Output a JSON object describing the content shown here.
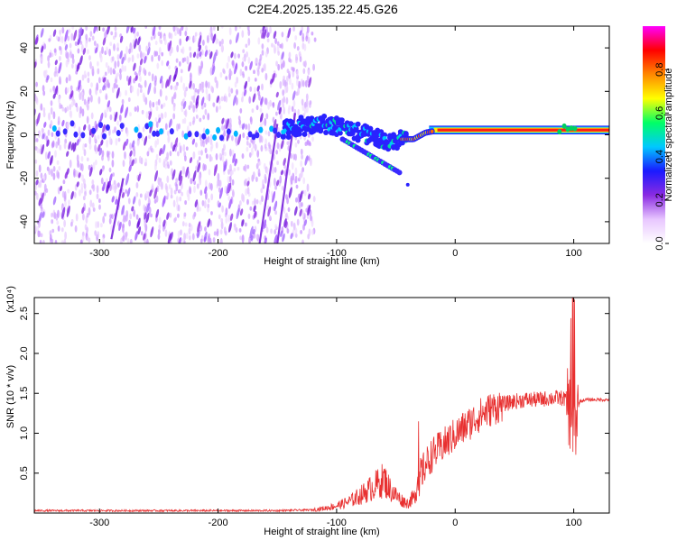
{
  "title": "C2E4.2025.135.22.45.G26",
  "chart_data": [
    {
      "type": "heatmap",
      "xlabel": "Height of straight line (km)",
      "ylabel": "Frequency (Hz)",
      "xlim": [
        -355,
        130
      ],
      "ylim": [
        -50,
        50
      ],
      "xticks": [
        -300,
        -200,
        -100,
        0,
        100
      ],
      "yticks": [
        -40,
        -20,
        0,
        20,
        40
      ],
      "colorbar": {
        "label": "Normalized spectral amplitude",
        "range": [
          0,
          1
        ],
        "ticks": [
          "0.0",
          "0.2",
          "0.4",
          "0.6",
          "0.8"
        ],
        "colors": [
          "#ffffff",
          "#e8c6ff",
          "#8a2be2",
          "#1a1aff",
          "#00c8ff",
          "#00ff66",
          "#ffff00",
          "#ff8800",
          "#ff0000",
          "#ff00ff"
        ]
      },
      "ridge": {
        "x": [
          -355,
          -300,
          -250,
          -200,
          -150,
          -130,
          -110,
          -90,
          -75,
          -65,
          -55,
          -45,
          -35,
          -25,
          -15,
          0,
          20,
          50,
          80,
          95,
          100,
          130
        ],
        "y": [
          3,
          2,
          2,
          1,
          2,
          4,
          5,
          3,
          0,
          -2,
          -4,
          -2,
          -2,
          1,
          2,
          2,
          2,
          2,
          2,
          3,
          2,
          2
        ]
      }
    },
    {
      "type": "line",
      "xlabel": "Height of straight line (km)",
      "ylabel": "SNR (10 * v/v)",
      "yscale_label": "(x10⁴)",
      "xlim": [
        -355,
        130
      ],
      "ylim": [
        0,
        2.7
      ],
      "xticks": [
        -300,
        -200,
        -100,
        0,
        100
      ],
      "yticks": [
        "0.5",
        "1.0",
        "1.5",
        "2.0",
        "2.5"
      ],
      "series": [
        {
          "color": "#e83030",
          "x": [
            -355,
            -300,
            -250,
            -200,
            -150,
            -120,
            -110,
            -100,
            -90,
            -80,
            -70,
            -60,
            -55,
            -50,
            -45,
            -40,
            -35,
            -30,
            -25,
            -20,
            -10,
            0,
            10,
            20,
            30,
            40,
            50,
            60,
            70,
            80,
            90,
            95,
            98,
            100,
            102,
            105,
            110,
            120,
            130
          ],
          "y": [
            0.03,
            0.03,
            0.03,
            0.03,
            0.03,
            0.04,
            0.06,
            0.09,
            0.14,
            0.22,
            0.32,
            0.42,
            0.3,
            0.22,
            0.16,
            0.12,
            0.2,
            0.45,
            0.6,
            0.72,
            0.85,
            0.98,
            1.1,
            1.22,
            1.3,
            1.36,
            1.4,
            1.42,
            1.42,
            1.44,
            1.44,
            1.42,
            1.1,
            0.9,
            1.2,
            1.4,
            1.42,
            1.42,
            1.42
          ]
        }
      ]
    }
  ]
}
